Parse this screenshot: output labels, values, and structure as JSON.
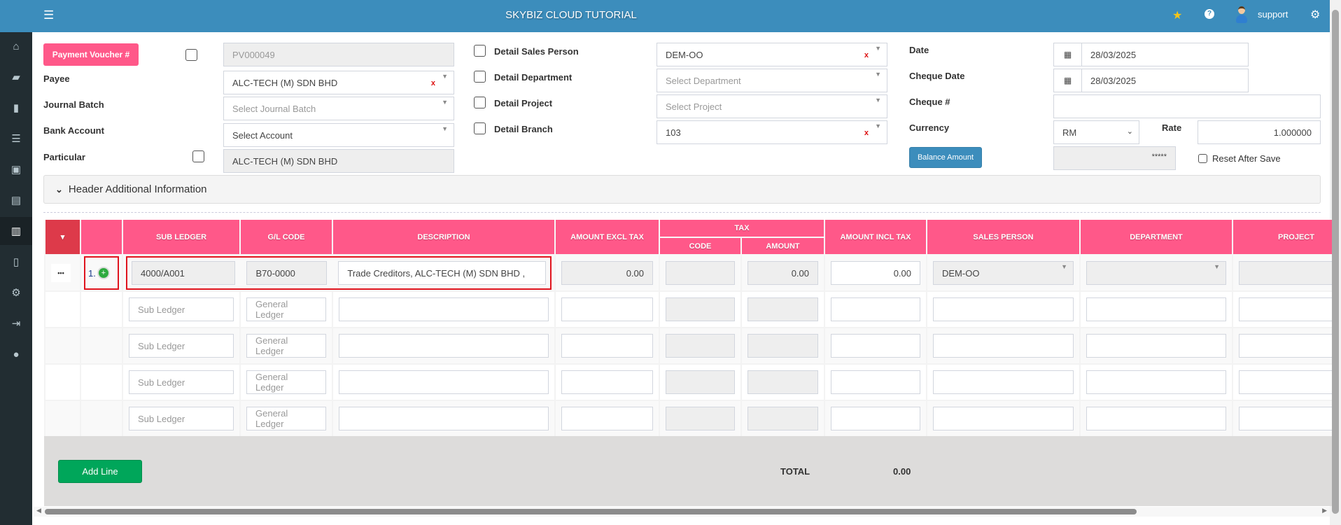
{
  "app": {
    "title": "SKYBIZ CLOUD TUTORIAL",
    "user": "support",
    "accent": "#3c8dbc",
    "pink": "#ff5889"
  },
  "sidebar": {
    "icons": [
      "home-icon",
      "folder-open-icon",
      "book-icon",
      "list-icon",
      "briefcase-icon",
      "list-alt-icon",
      "bar-chart-icon",
      "file-icon",
      "cogs-icon",
      "indent-icon",
      "user-icon"
    ],
    "active": "bar-chart-icon"
  },
  "form": {
    "voucher_button": "Payment Voucher #",
    "voucher_no": "PV000049",
    "payee_label": "Payee",
    "payee_value": "ALC-TECH (M) SDN BHD",
    "journal_label": "Journal Batch",
    "journal_placeholder": "Select Journal Batch",
    "bank_label": "Bank Account",
    "bank_value": "Select Account",
    "particular_label": "Particular",
    "particular_value": "ALC-TECH (M) SDN BHD",
    "detail_sales_label": "Detail Sales Person",
    "sales_value": "DEM-OO",
    "detail_dept_label": "Detail Department",
    "dept_placeholder": "Select Department",
    "detail_project_label": "Detail Project",
    "project_placeholder": "Select Project",
    "detail_branch_label": "Detail Branch",
    "branch_value": "103",
    "date_label": "Date",
    "date_value": "28/03/2025",
    "cheque_date_label": "Cheque Date",
    "cheque_date_value": "28/03/2025",
    "cheque_no_label": "Cheque #",
    "cheque_no_value": "",
    "currency_label": "Currency",
    "currency_value": "RM",
    "rate_label": "Rate",
    "rate_value": "1.000000",
    "balance_button": "Balance Amount",
    "balance_value": "*****",
    "reset_label": "Reset After Save",
    "additional_info": "Header Additional Information"
  },
  "table": {
    "headers": {
      "sub_ledger": "SUB LEDGER",
      "gl_code": "G/L CODE",
      "description": "DESCRIPTION",
      "amount_excl": "AMOUNT EXCL TAX",
      "tax": "TAX",
      "tax_code": "CODE",
      "tax_amount": "AMOUNT",
      "amount_incl": "AMOUNT INCL TAX",
      "sales_person": "SALES PERSON",
      "department": "DEPARTMENT",
      "project": "PROJECT"
    },
    "row1": {
      "menu": "•••",
      "no": "1.",
      "sub_ledger": "4000/A001",
      "gl_code": "B70-0000",
      "description": "Trade Creditors, ALC-TECH (M) SDN BHD ,",
      "amount_excl": "0.00",
      "tax_amount": "0.00",
      "amount_incl": "0.00",
      "sales_person": "DEM-OO"
    },
    "placeholders": {
      "sub_ledger": "Sub Ledger",
      "gl_code": "General Ledger"
    },
    "add_line": "Add Line",
    "total_label": "TOTAL",
    "total_value": "0.00"
  }
}
